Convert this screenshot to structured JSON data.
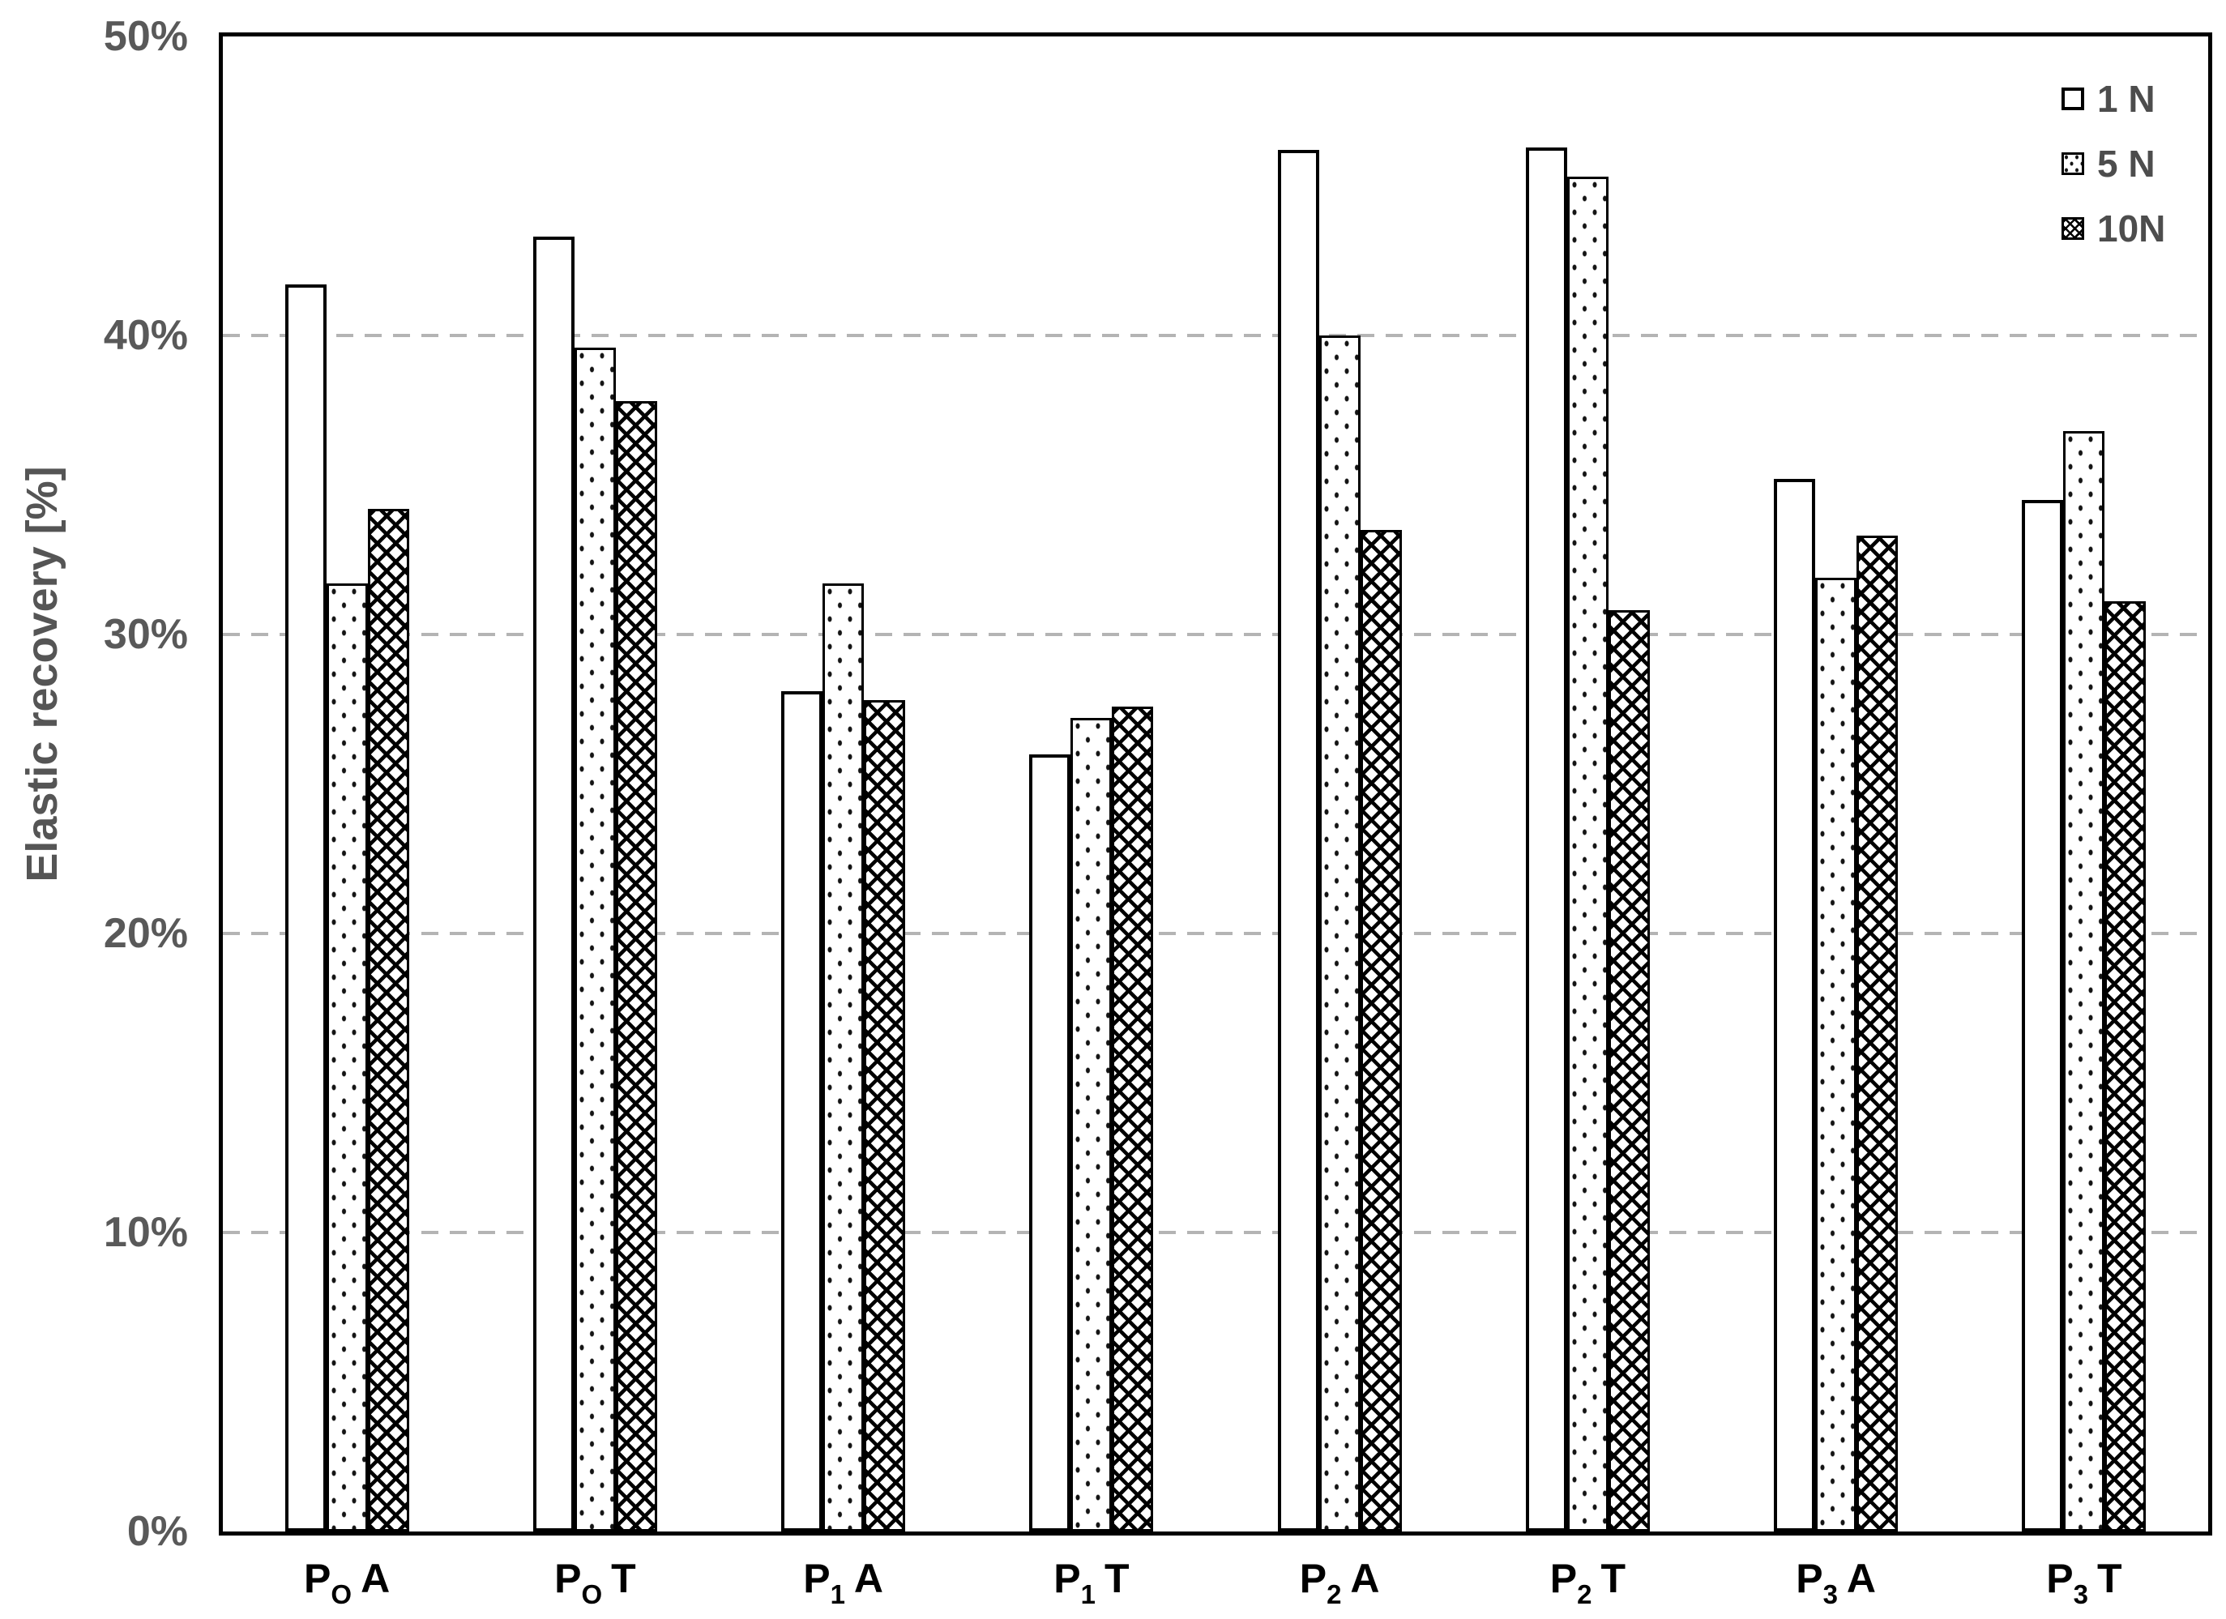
{
  "colors": {
    "background": "#ffffff",
    "axis_border": "#000000",
    "gridline": "#b4b4b4",
    "ytick_label": "#595959",
    "axis_title": "#555555",
    "category_label": "#000000",
    "legend_text": "#4d4d4d",
    "bar_fill": "#ffffff",
    "bar_outline": "#000000"
  },
  "chart_data": {
    "type": "bar",
    "title": "",
    "xlabel": "",
    "ylabel": "Elastic recovery [%]",
    "ylim": [
      0,
      50
    ],
    "ytick_labels": [
      "0%",
      "10%",
      "20%",
      "30%",
      "40%",
      "50%"
    ],
    "ytick_values": [
      0,
      10,
      20,
      30,
      40,
      50
    ],
    "gridline_values": [
      10,
      20,
      30,
      40
    ],
    "grid_style": "dashed horizontal",
    "legend_position": "top-right inside plot",
    "categories": [
      "PO A",
      "PO T",
      "P1 A",
      "P1 T",
      "P2 A",
      "P2 T",
      "P3 A",
      "P3 T"
    ],
    "category_parts": [
      {
        "main": "P",
        "sub": "O",
        "tail": "A"
      },
      {
        "main": "P",
        "sub": "O",
        "tail": "T"
      },
      {
        "main": "P",
        "sub": "1",
        "tail": "A"
      },
      {
        "main": "P",
        "sub": "1",
        "tail": "T"
      },
      {
        "main": "P",
        "sub": "2",
        "tail": "A"
      },
      {
        "main": "P",
        "sub": "2",
        "tail": "T"
      },
      {
        "main": "P",
        "sub": "3",
        "tail": "A"
      },
      {
        "main": "P",
        "sub": "3",
        "tail": "T"
      }
    ],
    "series": [
      {
        "name": "1 N",
        "pattern": "plain-white",
        "values": [
          41.7,
          43.3,
          28.1,
          26.0,
          46.2,
          46.3,
          35.2,
          34.5
        ]
      },
      {
        "name": "5 N",
        "pattern": "dots",
        "values": [
          31.7,
          39.6,
          31.7,
          27.2,
          40.0,
          45.3,
          31.9,
          36.8
        ]
      },
      {
        "name": "10N",
        "pattern": "crosshatch",
        "values": [
          34.2,
          37.8,
          27.8,
          27.6,
          33.5,
          30.8,
          33.3,
          31.1
        ]
      }
    ]
  }
}
